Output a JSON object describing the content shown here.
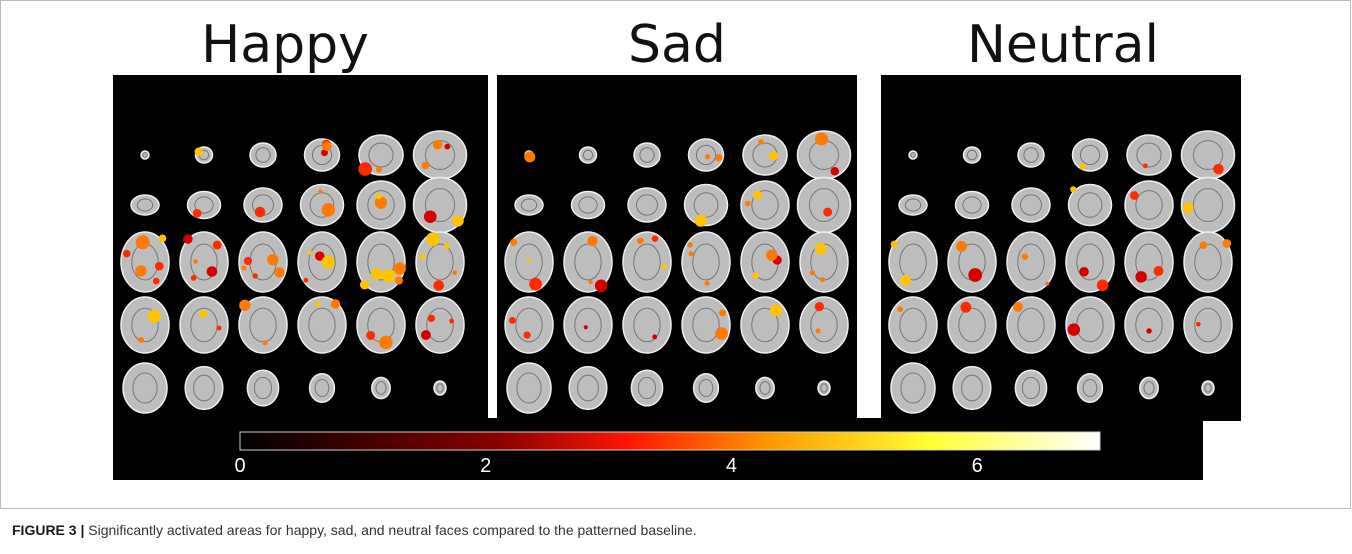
{
  "figure": {
    "panel_titles": [
      "Happy",
      "Sad",
      "Neutral"
    ],
    "colorbar": {
      "lim": [
        0,
        7
      ],
      "ticks": [
        0,
        2,
        4,
        6
      ]
    },
    "caption": {
      "label": "FIGURE 3 |",
      "text": "Significantly activated areas for happy, sad, and neutral faces compared to the patterned baseline."
    }
  }
}
